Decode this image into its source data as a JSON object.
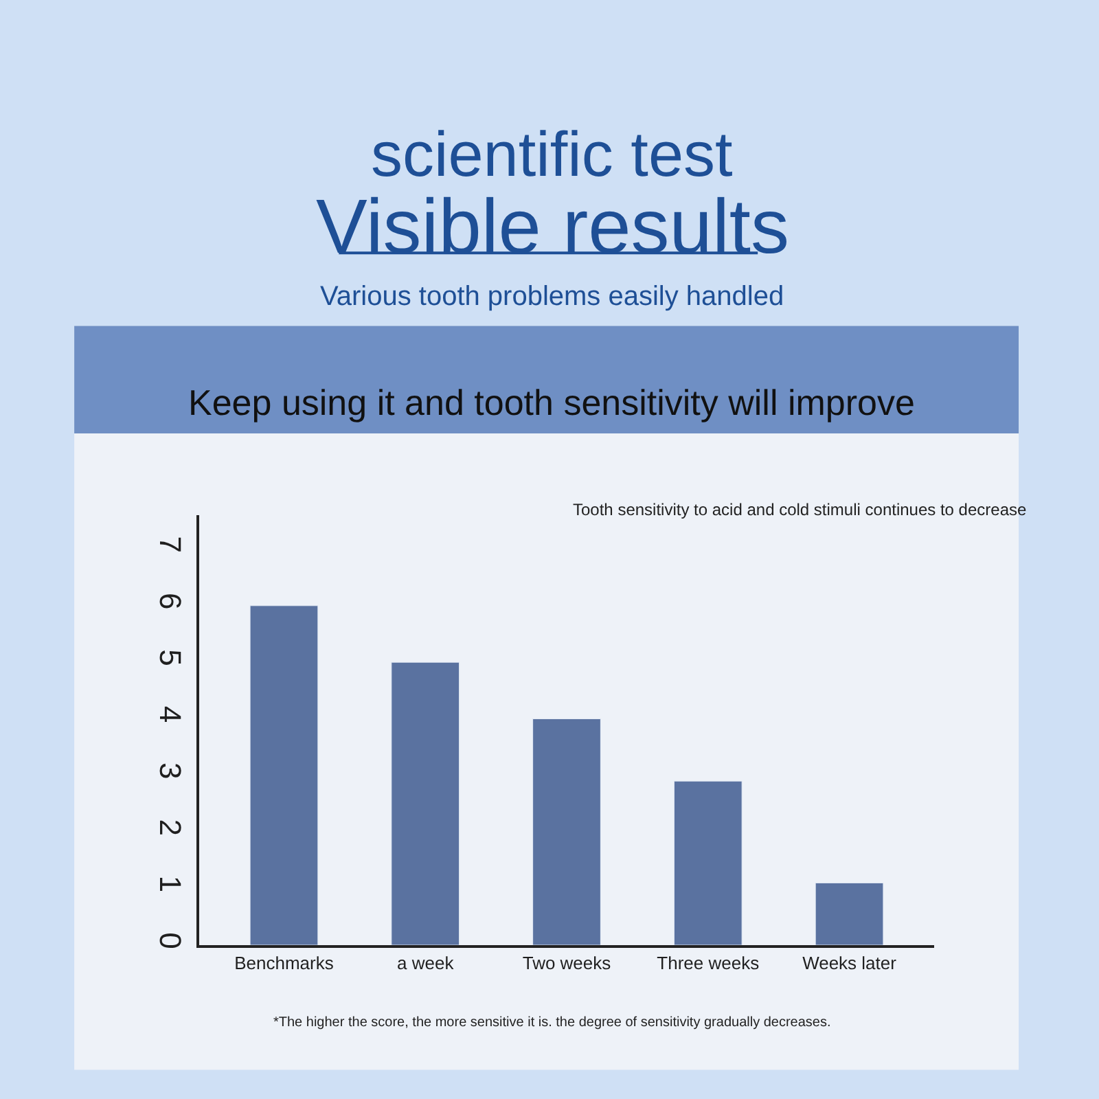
{
  "chart_data": {
    "type": "bar",
    "title": "scientific test",
    "subtitle": "Visible results",
    "annotations": [
      "Various tooth problems easily handled",
      "Keep using it and tooth sensitivity will improve",
      "Tooth sensitivity to acid and cold stimuli continues to decrease",
      "*The higher the score, the more sensitive it is. the degree of sensitivity gradually decreases."
    ],
    "categories": [
      "Benchmarks",
      "a week",
      "Two weeks",
      "Three weeks",
      "Weeks later"
    ],
    "values": [
      6.0,
      5.0,
      4.0,
      2.9,
      1.1
    ],
    "color": "#5a72a0",
    "ylim": [
      0,
      7.6
    ],
    "yticks": [
      0,
      1,
      2,
      3,
      4,
      5,
      6,
      7
    ]
  }
}
